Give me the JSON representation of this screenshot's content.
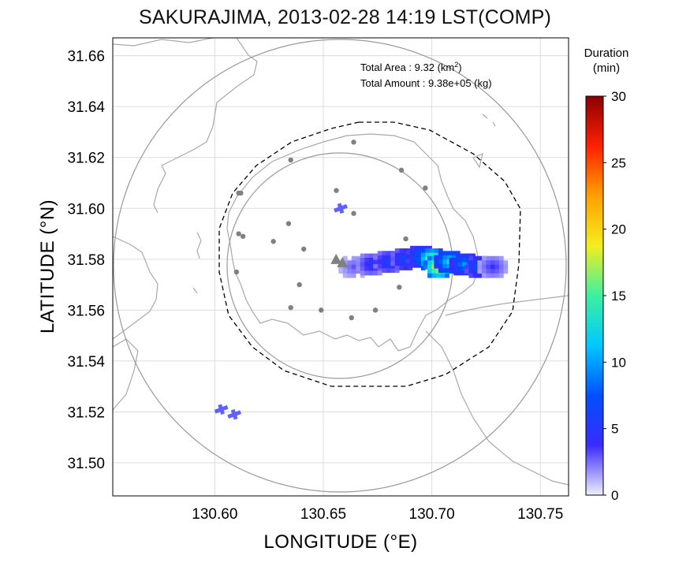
{
  "title": "SAKURAJIMA, 2013-02-28 14:19 LST(COMP)",
  "map": {
    "type": "map",
    "xlabel": "LONGITUDE (°E)",
    "ylabel": "LATITUDE (°N)",
    "xlim": [
      130.553,
      130.763
    ],
    "ylim": [
      31.487,
      31.667
    ],
    "x_ticks": [
      130.6,
      130.65,
      130.7,
      130.75
    ],
    "x_tick_labels": [
      "130.60",
      "130.65",
      "130.70",
      "130.75"
    ],
    "y_ticks": [
      31.5,
      31.52,
      31.54,
      31.56,
      31.58,
      31.6,
      31.62,
      31.64,
      31.66
    ],
    "y_tick_labels": [
      "31.50",
      "31.52",
      "31.54",
      "31.56",
      "31.58",
      "31.60",
      "31.62",
      "31.64",
      "31.66"
    ],
    "grid": true,
    "annotation": {
      "area_label": "Total Area   : 9.32 (km",
      "area_sup": "2",
      "area_close": ")",
      "amount_label": "Total Amount : 9.38e+05 (kg)"
    },
    "volcano": {
      "lon": 130.657,
      "lat": 31.58
    },
    "stations": [
      {
        "lon": 130.664,
        "lat": 31.626
      },
      {
        "lon": 130.635,
        "lat": 31.619
      },
      {
        "lon": 130.686,
        "lat": 31.615
      },
      {
        "lon": 130.612,
        "lat": 31.606
      },
      {
        "lon": 130.611,
        "lat": 31.606
      },
      {
        "lon": 130.656,
        "lat": 31.607
      },
      {
        "lon": 130.697,
        "lat": 31.608
      },
      {
        "lon": 130.664,
        "lat": 31.598
      },
      {
        "lon": 130.634,
        "lat": 31.594
      },
      {
        "lon": 130.611,
        "lat": 31.59
      },
      {
        "lon": 130.613,
        "lat": 31.589
      },
      {
        "lon": 130.627,
        "lat": 31.587
      },
      {
        "lon": 130.641,
        "lat": 31.584
      },
      {
        "lon": 130.688,
        "lat": 31.588
      },
      {
        "lon": 130.61,
        "lat": 31.575
      },
      {
        "lon": 130.639,
        "lat": 31.57
      },
      {
        "lon": 130.685,
        "lat": 31.569
      },
      {
        "lon": 130.635,
        "lat": 31.561
      },
      {
        "lon": 130.649,
        "lat": 31.56
      },
      {
        "lon": 130.674,
        "lat": 31.56
      },
      {
        "lon": 130.663,
        "lat": 31.557
      }
    ],
    "radar_markers": [
      {
        "lon": 130.658,
        "lat": 31.6
      },
      {
        "lon": 130.603,
        "lat": 31.521
      },
      {
        "lon": 130.609,
        "lat": 31.519
      }
    ],
    "ash_duration_minutes": [
      {
        "lon": 130.664,
        "lat": 31.577,
        "v": 3
      },
      {
        "lon": 130.672,
        "lat": 31.578,
        "v": 5
      },
      {
        "lon": 130.68,
        "lat": 31.579,
        "v": 6
      },
      {
        "lon": 130.688,
        "lat": 31.58,
        "v": 7
      },
      {
        "lon": 130.695,
        "lat": 31.581,
        "v": 9
      },
      {
        "lon": 130.7,
        "lat": 31.58,
        "v": 18
      },
      {
        "lon": 130.703,
        "lat": 31.577,
        "v": 21
      },
      {
        "lon": 130.708,
        "lat": 31.579,
        "v": 13
      },
      {
        "lon": 130.715,
        "lat": 31.578,
        "v": 10
      },
      {
        "lon": 130.722,
        "lat": 31.577,
        "v": 8
      },
      {
        "lon": 130.728,
        "lat": 31.577,
        "v": 4
      }
    ]
  },
  "colorbar": {
    "title_line1": "Duration",
    "title_line2": "(min)",
    "min": 0,
    "max": 30,
    "ticks": [
      "0",
      "5",
      "10",
      "15",
      "20",
      "25",
      "30"
    ],
    "colors": [
      "#eeeeff",
      "#3a2bff",
      "#0050ff",
      "#00c8ff",
      "#3cf0a0",
      "#f4ee1e",
      "#ffa000",
      "#ff2000",
      "#8b0000"
    ]
  }
}
